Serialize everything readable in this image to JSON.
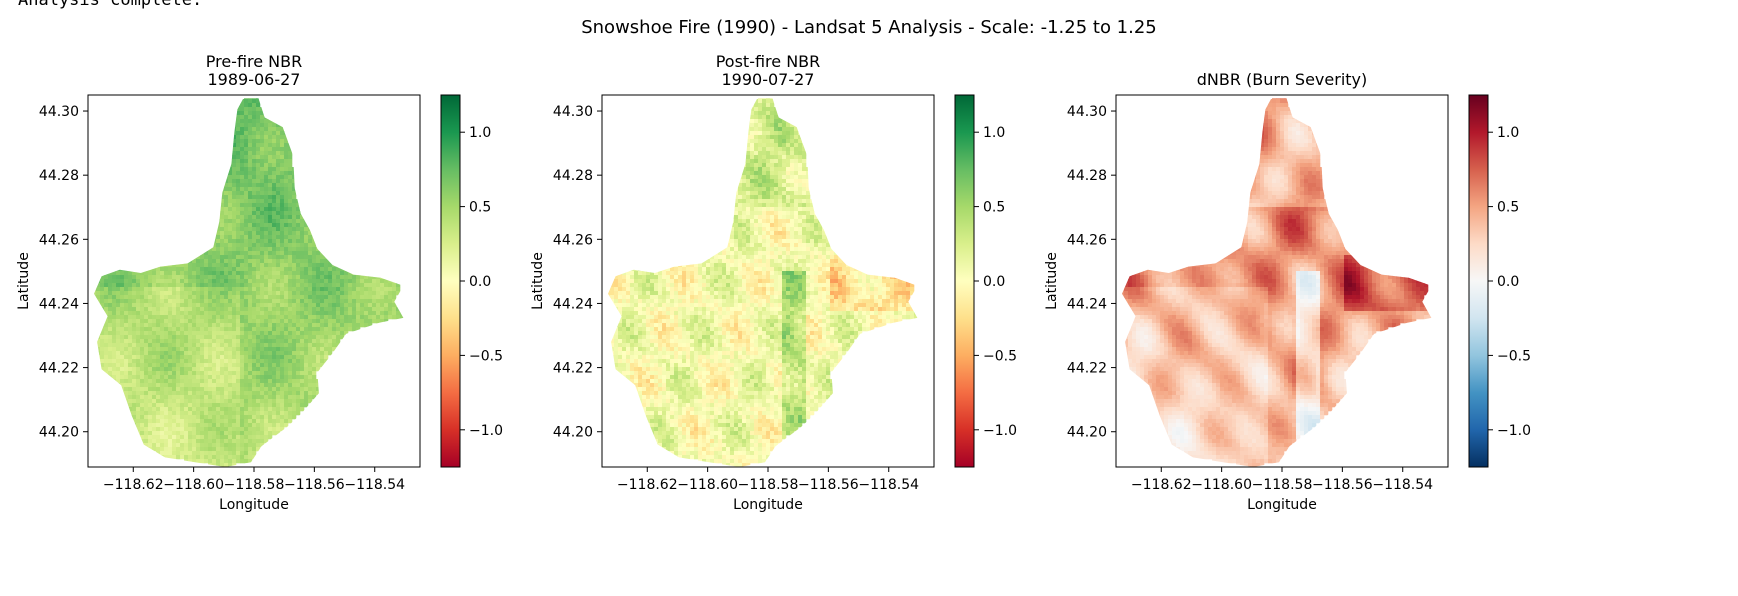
{
  "console": {
    "status_line": "Analysis complete."
  },
  "figure": {
    "suptitle": "Snowshoe Fire (1990) - Landsat 5 Analysis - Scale: -1.25 to 1.25"
  },
  "chart_data": [
    {
      "type": "heatmap",
      "title_line1": "Pre-fire NBR",
      "title_line2": "1989-06-27",
      "xlabel": "Longitude",
      "ylabel": "Latitude",
      "xlim": [
        -118.635,
        -118.525
      ],
      "ylim": [
        44.189,
        44.305
      ],
      "xticks": [
        -118.62,
        -118.6,
        -118.58,
        -118.56,
        -118.54
      ],
      "xtick_labels": [
        "−118.62",
        "−118.60",
        "−118.58",
        "−118.56",
        "−118.54"
      ],
      "yticks": [
        44.3,
        44.28,
        44.26,
        44.24,
        44.22,
        44.2
      ],
      "ytick_labels": [
        "44.30",
        "44.28",
        "44.26",
        "44.24",
        "44.22",
        "44.20"
      ],
      "colormap": "RdYlGn",
      "clim": [
        -1.25,
        1.25
      ],
      "colorbar_ticks": [
        1.0,
        0.5,
        0.0,
        -0.5,
        -1.0
      ],
      "colorbar_tick_labels": [
        "1.0",
        "0.5",
        "0.0",
        "−0.5",
        "−1.0"
      ],
      "typical_value_range": [
        0.1,
        0.9
      ]
    },
    {
      "type": "heatmap",
      "title_line1": "Post-fire NBR",
      "title_line2": "1990-07-27",
      "xlabel": "Longitude",
      "ylabel": "Latitude",
      "xlim": [
        -118.635,
        -118.525
      ],
      "ylim": [
        44.189,
        44.305
      ],
      "xticks": [
        -118.62,
        -118.6,
        -118.58,
        -118.56,
        -118.54
      ],
      "xtick_labels": [
        "−118.62",
        "−118.60",
        "−118.58",
        "−118.56",
        "−118.54"
      ],
      "yticks": [
        44.3,
        44.28,
        44.26,
        44.24,
        44.22,
        44.2
      ],
      "ytick_labels": [
        "44.30",
        "44.28",
        "44.26",
        "44.24",
        "44.22",
        "44.20"
      ],
      "colormap": "RdYlGn",
      "clim": [
        -1.25,
        1.25
      ],
      "colorbar_ticks": [
        1.0,
        0.5,
        0.0,
        -0.5,
        -1.0
      ],
      "colorbar_tick_labels": [
        "1.0",
        "0.5",
        "0.0",
        "−0.5",
        "−1.0"
      ],
      "typical_value_range": [
        -0.4,
        0.6
      ]
    },
    {
      "type": "heatmap",
      "title_line1": "dNBR (Burn Severity)",
      "title_line2": "",
      "xlabel": "Longitude",
      "ylabel": "Latitude",
      "xlim": [
        -118.635,
        -118.525
      ],
      "ylim": [
        44.189,
        44.305
      ],
      "xticks": [
        -118.62,
        -118.6,
        -118.58,
        -118.56,
        -118.54
      ],
      "xtick_labels": [
        "−118.62",
        "−118.60",
        "−118.58",
        "−118.56",
        "−118.54"
      ],
      "yticks": [
        44.3,
        44.28,
        44.26,
        44.24,
        44.22,
        44.2
      ],
      "ytick_labels": [
        "44.30",
        "44.28",
        "44.26",
        "44.24",
        "44.22",
        "44.20"
      ],
      "colormap": "RdBu_r",
      "clim": [
        -1.25,
        1.25
      ],
      "colorbar_ticks": [
        1.0,
        0.5,
        0.0,
        -0.5,
        -1.0
      ],
      "colorbar_tick_labels": [
        "1.0",
        "0.5",
        "0.0",
        "−0.5",
        "−1.0"
      ],
      "typical_value_range": [
        -0.3,
        1.0
      ]
    }
  ],
  "fire_perimeter_lonlat": [
    [
      -118.5835,
      44.304
    ],
    [
      -118.5785,
      44.304
    ],
    [
      -118.5765,
      44.298
    ],
    [
      -118.5705,
      44.295
    ],
    [
      -118.567,
      44.286
    ],
    [
      -118.5665,
      44.276
    ],
    [
      -118.5645,
      44.268
    ],
    [
      -118.5615,
      44.263
    ],
    [
      -118.559,
      44.257
    ],
    [
      -118.554,
      44.252
    ],
    [
      -118.547,
      44.249
    ],
    [
      -118.538,
      44.248
    ],
    [
      -118.5305,
      44.2455
    ],
    [
      -118.5335,
      44.2405
    ],
    [
      -118.5305,
      44.2355
    ],
    [
      -118.5385,
      44.234
    ],
    [
      -118.5495,
      44.2305
    ],
    [
      -118.554,
      44.2245
    ],
    [
      -118.559,
      44.2185
    ],
    [
      -118.5585,
      44.212
    ],
    [
      -118.5645,
      44.2055
    ],
    [
      -118.569,
      44.2015
    ],
    [
      -118.5775,
      44.1955
    ],
    [
      -118.581,
      44.1905
    ],
    [
      -118.5895,
      44.189
    ],
    [
      -118.5995,
      44.1905
    ],
    [
      -118.6095,
      44.192
    ],
    [
      -118.6165,
      44.196
    ],
    [
      -118.6205,
      44.205
    ],
    [
      -118.624,
      44.2145
    ],
    [
      -118.6305,
      44.2195
    ],
    [
      -118.632,
      44.228
    ],
    [
      -118.6285,
      44.236
    ],
    [
      -118.633,
      44.243
    ],
    [
      -118.6305,
      44.2485
    ],
    [
      -118.6245,
      44.2505
    ],
    [
      -118.6175,
      44.2495
    ],
    [
      -118.611,
      44.2515
    ],
    [
      -118.602,
      44.2525
    ],
    [
      -118.5935,
      44.2575
    ],
    [
      -118.5915,
      44.2655
    ],
    [
      -118.5905,
      44.2745
    ],
    [
      -118.5875,
      44.2835
    ],
    [
      -118.5865,
      44.2935
    ],
    [
      -118.5855,
      44.3005
    ]
  ]
}
